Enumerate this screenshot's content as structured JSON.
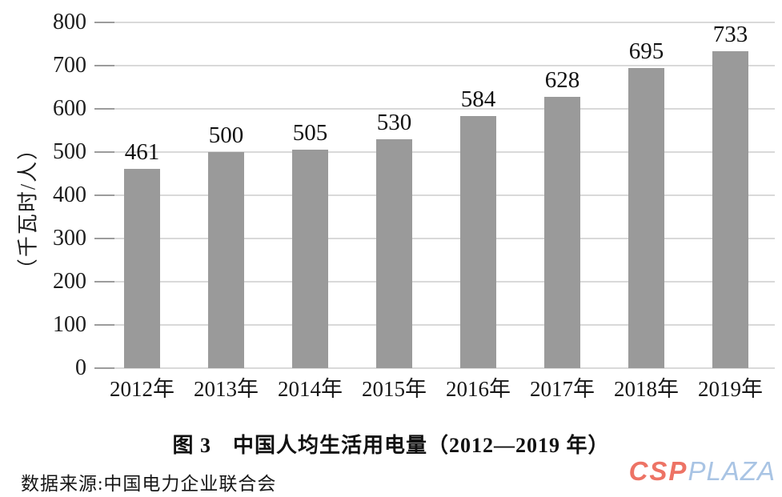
{
  "chart_data": {
    "type": "bar",
    "title": "图 3　中国人均生活用电量（2012—2019 年）",
    "ylabel": "（千瓦时/人）",
    "xlabel": "",
    "categories": [
      "2012年",
      "2013年",
      "2014年",
      "2015年",
      "2016年",
      "2017年",
      "2018年",
      "2019年"
    ],
    "values": [
      461,
      500,
      505,
      530,
      584,
      628,
      695,
      733
    ],
    "ylim": [
      0,
      800
    ],
    "ytick_step": 100,
    "grid": true,
    "legend": "none",
    "bar_color": "#9a9a9a",
    "gridline_color": "#d9d9d9",
    "tick_color": "#9c9c9c"
  },
  "source_note": "数据来源:中国电力企业联合会",
  "watermark": {
    "csp": "CSP",
    "plaza": "PLAZA",
    "csp_color": "#ed7365",
    "plaza_color": "#a9c4e4"
  }
}
